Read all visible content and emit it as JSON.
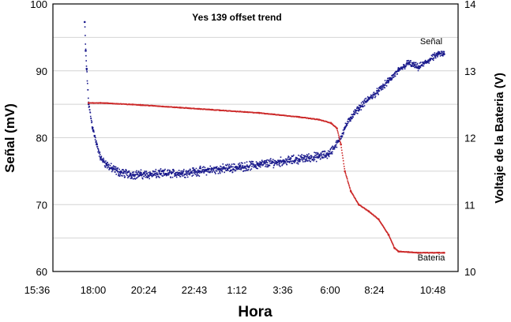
{
  "chart_data": {
    "type": "scatter",
    "title": "Yes 139 offset trend",
    "xlabel": "Hora",
    "ylabel_left": "Señal (mV)",
    "ylabel_right": "Voltaje de la Bateria (V)",
    "x_ticks": [
      "15:36",
      "18:00",
      "20:24",
      "22:43",
      "1:12",
      "3:36",
      "6:00",
      "8:24",
      "10:48"
    ],
    "y_left_ticks": [
      "60",
      "70",
      "80",
      "90",
      "100"
    ],
    "y_right_ticks": [
      "10",
      "11",
      "12",
      "13",
      "14"
    ],
    "ylim_left": [
      60,
      100
    ],
    "ylim_right": [
      10,
      14
    ],
    "grid": true,
    "colors": {
      "senal": "#1a1a8c",
      "bateria": "#cc2a2a",
      "grid": "#d4d4d4"
    },
    "series": [
      {
        "name": "Señal",
        "axis": "left",
        "x_hours": [
          17.2,
          17.25,
          17.3,
          17.4,
          17.6,
          17.8,
          18.0,
          18.3,
          18.6,
          19.0,
          19.5,
          20.0,
          20.5,
          21.0,
          22.0,
          23.0,
          24.0,
          25.0,
          26.0,
          27.0,
          28.0,
          29.0,
          29.5,
          30.0,
          30.3,
          30.6,
          31.0,
          31.5,
          32.0,
          32.5,
          33.0,
          33.5,
          34.0,
          34.5,
          35.0,
          35.3
        ],
        "values": [
          97.3,
          93.0,
          90.3,
          85.0,
          81.5,
          79.0,
          77.0,
          76.0,
          75.3,
          74.8,
          74.5,
          74.5,
          74.5,
          74.6,
          74.7,
          75.0,
          75.3,
          75.6,
          76.0,
          76.4,
          76.8,
          77.2,
          77.6,
          79.5,
          81.5,
          83.0,
          84.4,
          85.8,
          87.0,
          88.5,
          90.0,
          91.2,
          90.5,
          91.5,
          92.5,
          92.5
        ],
        "noise": 0.6
      },
      {
        "name": "Bateria",
        "axis": "right",
        "x_hours": [
          17.4,
          18.0,
          20.0,
          22.0,
          24.0,
          26.0,
          28.0,
          29.0,
          29.6,
          29.9,
          30.1,
          30.3,
          30.6,
          31.0,
          31.5,
          32.0,
          32.5,
          32.8,
          33.0,
          33.5,
          34.0,
          35.0,
          35.3
        ],
        "values": [
          12.52,
          12.52,
          12.49,
          12.45,
          12.41,
          12.37,
          12.31,
          12.27,
          12.22,
          12.14,
          11.9,
          11.5,
          11.2,
          11.0,
          10.9,
          10.78,
          10.55,
          10.35,
          10.3,
          10.29,
          10.28,
          10.28,
          10.28
        ],
        "noise": 0.006
      }
    ],
    "series_labels": {
      "senal": "Señal",
      "bateria": "Bateria"
    }
  }
}
